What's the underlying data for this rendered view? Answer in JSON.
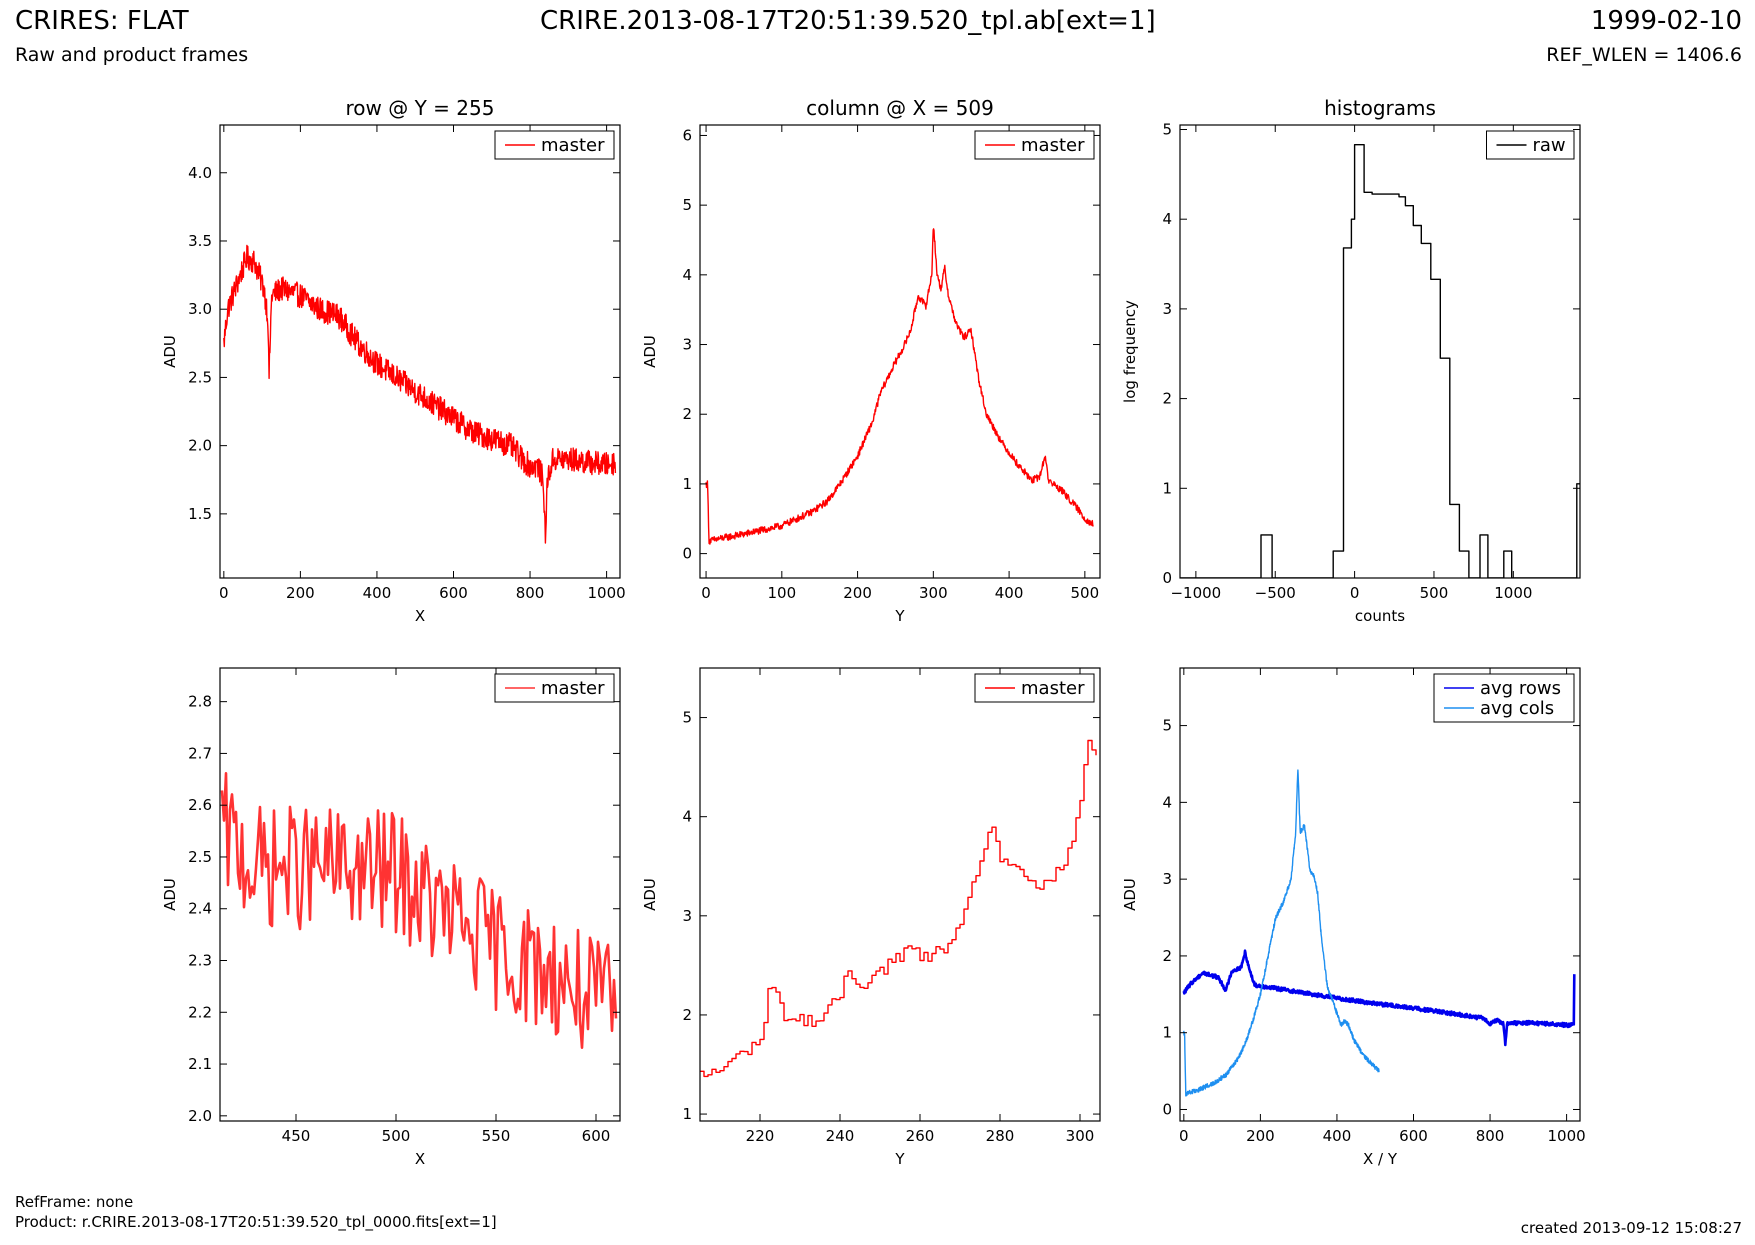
{
  "header": {
    "left_title": "CRIRES: FLAT",
    "left_subtitle": "Raw and product frames",
    "center_title": "CRIRE.2013-08-17T20:51:39.520_tpl.ab[ext=1]",
    "right_title": "1999-02-10",
    "right_subtitle": "REF_WLEN = 1406.6"
  },
  "footer": {
    "refframe": "RefFrame: none",
    "product": "Product: r.CRIRE.2013-08-17T20:51:39.520_tpl_0000.fits[ext=1]",
    "created": "created 2013-09-12 15:08:27"
  },
  "colors": {
    "red": "#ff0000",
    "red_light": "#ff3333",
    "black": "#000000",
    "blue": "#0000ee",
    "lightblue": "#1e8ff0"
  },
  "chart_data": [
    {
      "id": "row",
      "type": "line",
      "title": "row @ Y = 255",
      "xlabel": "X",
      "ylabel": "ADU",
      "xlim": [
        -10,
        1035
      ],
      "ylim": [
        1.03,
        4.35
      ],
      "xticks": [
        0,
        200,
        400,
        600,
        800,
        1000
      ],
      "yticks": [
        1.5,
        2.0,
        2.5,
        3.0,
        3.5,
        4.0
      ],
      "legend": {
        "position": "top-right",
        "entries": [
          "master"
        ]
      },
      "series": [
        {
          "name": "master",
          "color": "#ff0000",
          "noise": 0.09,
          "points": [
            [
              0,
              2.75
            ],
            [
              10,
              3.0
            ],
            [
              30,
              3.15
            ],
            [
              60,
              3.38
            ],
            [
              80,
              3.35
            ],
            [
              105,
              3.15
            ],
            [
              115,
              2.95
            ],
            [
              118,
              2.5
            ],
            [
              125,
              3.1
            ],
            [
              150,
              3.15
            ],
            [
              200,
              3.1
            ],
            [
              250,
              3.0
            ],
            [
              300,
              2.95
            ],
            [
              350,
              2.75
            ],
            [
              400,
              2.6
            ],
            [
              450,
              2.5
            ],
            [
              500,
              2.4
            ],
            [
              550,
              2.3
            ],
            [
              600,
              2.2
            ],
            [
              650,
              2.1
            ],
            [
              700,
              2.05
            ],
            [
              750,
              2.0
            ],
            [
              780,
              1.9
            ],
            [
              800,
              1.85
            ],
            [
              820,
              1.85
            ],
            [
              835,
              1.75
            ],
            [
              840,
              1.28
            ],
            [
              845,
              1.75
            ],
            [
              860,
              1.9
            ],
            [
              900,
              1.9
            ],
            [
              950,
              1.88
            ],
            [
              1000,
              1.86
            ],
            [
              1023,
              1.88
            ]
          ]
        }
      ]
    },
    {
      "id": "column",
      "type": "line",
      "title": "column @ X = 509",
      "xlabel": "Y",
      "ylabel": "ADU",
      "xlim": [
        -8,
        520
      ],
      "ylim": [
        -0.35,
        6.15
      ],
      "xticks": [
        0,
        100,
        200,
        300,
        400,
        500
      ],
      "yticks": [
        0,
        1,
        2,
        3,
        4,
        5,
        6
      ],
      "legend": {
        "position": "top-right",
        "entries": [
          "master"
        ]
      },
      "series": [
        {
          "name": "master",
          "color": "#ff0000",
          "noise": 0.05,
          "points": [
            [
              0,
              1.0
            ],
            [
              2,
              1.0
            ],
            [
              4,
              0.18
            ],
            [
              20,
              0.22
            ],
            [
              50,
              0.28
            ],
            [
              80,
              0.35
            ],
            [
              100,
              0.4
            ],
            [
              120,
              0.5
            ],
            [
              140,
              0.6
            ],
            [
              160,
              0.75
            ],
            [
              180,
              1.05
            ],
            [
              200,
              1.4
            ],
            [
              220,
              1.9
            ],
            [
              230,
              2.3
            ],
            [
              250,
              2.75
            ],
            [
              260,
              2.95
            ],
            [
              270,
              3.2
            ],
            [
              280,
              3.7
            ],
            [
              290,
              3.55
            ],
            [
              298,
              4.0
            ],
            [
              300,
              4.75
            ],
            [
              305,
              4.0
            ],
            [
              310,
              3.8
            ],
            [
              315,
              4.1
            ],
            [
              320,
              3.7
            ],
            [
              330,
              3.3
            ],
            [
              340,
              3.1
            ],
            [
              350,
              3.2
            ],
            [
              360,
              2.5
            ],
            [
              370,
              2.0
            ],
            [
              390,
              1.6
            ],
            [
              410,
              1.3
            ],
            [
              430,
              1.05
            ],
            [
              440,
              1.1
            ],
            [
              448,
              1.4
            ],
            [
              452,
              1.05
            ],
            [
              470,
              0.9
            ],
            [
              490,
              0.65
            ],
            [
              500,
              0.5
            ],
            [
              511,
              0.42
            ]
          ]
        }
      ]
    },
    {
      "id": "histograms",
      "type": "step",
      "title": "histograms",
      "xlabel": "counts",
      "ylabel": "log frequency",
      "xlim": [
        -1100,
        1420
      ],
      "ylim": [
        0,
        5.05
      ],
      "xticks": [
        -1000,
        -500,
        0,
        500,
        1000
      ],
      "yticks": [
        0,
        1,
        2,
        3,
        4,
        5
      ],
      "legend": {
        "position": "top-right",
        "entries": [
          "raw"
        ]
      },
      "series": [
        {
          "name": "raw",
          "color": "#000000",
          "edges": [
            -1100,
            -590,
            -520,
            -135,
            -70,
            -20,
            0,
            60,
            110,
            160,
            210,
            280,
            320,
            370,
            420,
            480,
            540,
            600,
            660,
            720,
            790,
            840,
            890,
            940,
            990,
            1040,
            1090,
            1140,
            1190,
            1240,
            1290,
            1340,
            1400,
            1420
          ],
          "values": [
            0,
            0.48,
            0,
            0.3,
            3.68,
            4.0,
            4.83,
            4.3,
            4.28,
            4.28,
            4.28,
            4.25,
            4.15,
            3.93,
            3.73,
            3.33,
            2.45,
            0.82,
            0.3,
            0,
            0.48,
            0,
            0,
            0.3,
            0,
            0,
            0,
            0,
            0,
            0,
            0,
            0,
            1.05
          ]
        }
      ]
    },
    {
      "id": "row-zoom",
      "type": "line",
      "title": "",
      "xlabel": "X",
      "ylabel": "ADU",
      "xlim": [
        412,
        612
      ],
      "ylim": [
        1.99,
        2.865
      ],
      "xticks": [
        450,
        500,
        550,
        600
      ],
      "yticks": [
        2.0,
        2.1,
        2.2,
        2.3,
        2.4,
        2.5,
        2.6,
        2.7,
        2.8
      ],
      "legend": {
        "position": "top-right",
        "entries": [
          "master"
        ]
      },
      "series": [
        {
          "name": "master",
          "color": "#ff3333",
          "noise": 0.12,
          "points": [
            [
              413,
              2.55
            ],
            [
              430,
              2.48
            ],
            [
              460,
              2.48
            ],
            [
              500,
              2.47
            ],
            [
              520,
              2.4
            ],
            [
              540,
              2.35
            ],
            [
              560,
              2.3
            ],
            [
              580,
              2.27
            ],
            [
              600,
              2.22
            ],
            [
              610,
              2.22
            ]
          ]
        }
      ]
    },
    {
      "id": "column-zoom",
      "type": "line",
      "title": "",
      "xlabel": "Y",
      "ylabel": "ADU",
      "xlim": [
        205,
        305
      ],
      "ylim": [
        0.93,
        5.5
      ],
      "xticks": [
        220,
        240,
        260,
        280,
        300
      ],
      "yticks": [
        1,
        2,
        3,
        4,
        5
      ],
      "legend": {
        "position": "top-right",
        "entries": [
          "master"
        ]
      },
      "series": [
        {
          "name": "master",
          "color": "#ff0000",
          "noise": 0.07,
          "points": [
            [
              205,
              1.38
            ],
            [
              210,
              1.45
            ],
            [
              215,
              1.6
            ],
            [
              220,
              1.75
            ],
            [
              222,
              2.2
            ],
            [
              224,
              2.3
            ],
            [
              226,
              1.95
            ],
            [
              230,
              1.95
            ],
            [
              235,
              1.95
            ],
            [
              240,
              2.2
            ],
            [
              242,
              2.45
            ],
            [
              245,
              2.3
            ],
            [
              250,
              2.45
            ],
            [
              255,
              2.6
            ],
            [
              258,
              2.7
            ],
            [
              260,
              2.55
            ],
            [
              265,
              2.65
            ],
            [
              270,
              2.85
            ],
            [
              275,
              3.6
            ],
            [
              278,
              3.9
            ],
            [
              280,
              3.6
            ],
            [
              285,
              3.4
            ],
            [
              290,
              3.3
            ],
            [
              295,
              3.45
            ],
            [
              298,
              3.7
            ],
            [
              300,
              4.2
            ],
            [
              302,
              4.75
            ],
            [
              304,
              4.62
            ]
          ]
        }
      ]
    },
    {
      "id": "averages",
      "type": "line",
      "title": "",
      "xlabel": "X / Y",
      "ylabel": "ADU",
      "xlim": [
        -10,
        1035
      ],
      "ylim": [
        -0.15,
        5.75
      ],
      "xticks": [
        0,
        200,
        400,
        600,
        800,
        1000
      ],
      "yticks": [
        0,
        1,
        2,
        3,
        4,
        5
      ],
      "legend": {
        "position": "top-right",
        "entries": [
          "avg rows",
          "avg cols"
        ]
      },
      "series": [
        {
          "name": "avg rows",
          "color": "#0000ee",
          "noise": 0.025,
          "points": [
            [
              0,
              1.52
            ],
            [
              20,
              1.65
            ],
            [
              50,
              1.78
            ],
            [
              90,
              1.72
            ],
            [
              110,
              1.55
            ],
            [
              125,
              1.8
            ],
            [
              150,
              1.85
            ],
            [
              160,
              2.05
            ],
            [
              170,
              1.85
            ],
            [
              185,
              1.62
            ],
            [
              250,
              1.57
            ],
            [
              300,
              1.53
            ],
            [
              400,
              1.45
            ],
            [
              500,
              1.38
            ],
            [
              600,
              1.32
            ],
            [
              700,
              1.25
            ],
            [
              780,
              1.19
            ],
            [
              800,
              1.12
            ],
            [
              820,
              1.16
            ],
            [
              835,
              1.12
            ],
            [
              840,
              0.85
            ],
            [
              845,
              1.12
            ],
            [
              900,
              1.13
            ],
            [
              1000,
              1.1
            ],
            [
              1019,
              1.1
            ],
            [
              1020,
              1.75
            ]
          ]
        },
        {
          "name": "avg cols",
          "color": "#1e8ff0",
          "noise": 0.03,
          "points": [
            [
              0,
              1.0
            ],
            [
              2,
              1.0
            ],
            [
              5,
              0.2
            ],
            [
              40,
              0.26
            ],
            [
              80,
              0.35
            ],
            [
              110,
              0.45
            ],
            [
              140,
              0.65
            ],
            [
              160,
              0.85
            ],
            [
              180,
              1.15
            ],
            [
              200,
              1.5
            ],
            [
              220,
              2.0
            ],
            [
              240,
              2.5
            ],
            [
              260,
              2.7
            ],
            [
              280,
              3.0
            ],
            [
              292,
              3.6
            ],
            [
              298,
              4.45
            ],
            [
              304,
              3.6
            ],
            [
              315,
              3.7
            ],
            [
              320,
              3.5
            ],
            [
              330,
              3.1
            ],
            [
              340,
              3.05
            ],
            [
              350,
              2.8
            ],
            [
              360,
              2.2
            ],
            [
              375,
              1.6
            ],
            [
              390,
              1.4
            ],
            [
              410,
              1.1
            ],
            [
              420,
              1.15
            ],
            [
              430,
              1.1
            ],
            [
              445,
              0.9
            ],
            [
              470,
              0.7
            ],
            [
              490,
              0.6
            ],
            [
              510,
              0.5
            ]
          ]
        }
      ]
    }
  ]
}
